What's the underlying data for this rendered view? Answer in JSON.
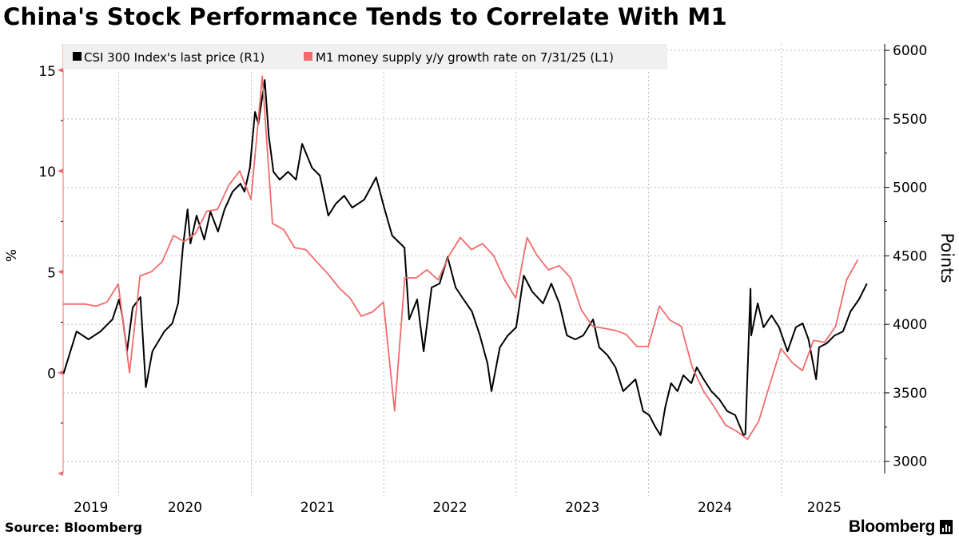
{
  "title": "China's Stock Performance Tends to Correlate With M1",
  "footer": {
    "source": "Source: Bloomberg",
    "logo": "Bloomberg",
    "logo_icon": "bloomberg-terminal-icon"
  },
  "colors": {
    "csi": "#000000",
    "m1": "#f26b6b",
    "legend_bg": "#f0f0f0",
    "grid": "#bbbbbb"
  },
  "chart_data": {
    "type": "line",
    "title": "China's Stock Performance Tends to Correlate With M1",
    "x_range": [
      "2019-08-01",
      "2025-10-13"
    ],
    "x_tick_labels": [
      "2019",
      "2020",
      "2021",
      "2022",
      "2023",
      "2024",
      "2025"
    ],
    "grid": true,
    "legend_placement": "top-left",
    "left_axis": {
      "label": "%",
      "ylim": [
        -5,
        16.3
      ],
      "ticks": [
        15,
        10,
        5,
        0
      ],
      "tick_labels": [
        "15",
        "10",
        "5",
        "0"
      ]
    },
    "right_axis": {
      "label": "Points",
      "ylim": [
        2911,
        6047
      ],
      "ticks": [
        6000,
        5500,
        5000,
        4500,
        4000,
        3500,
        3000
      ],
      "tick_labels": [
        "6000",
        "5500",
        "5000",
        "4500",
        "4000",
        "3500",
        "3000"
      ]
    },
    "series": [
      {
        "name": "CSI 300 Index's last price (R1)",
        "axis": "right",
        "color": "#000000",
        "points": [
          [
            "2019-08-02",
            3640
          ],
          [
            "2019-09-07",
            3948
          ],
          [
            "2019-10-10",
            3890
          ],
          [
            "2019-11-12",
            3948
          ],
          [
            "2019-12-15",
            4036
          ],
          [
            "2020-01-02",
            4182
          ],
          [
            "2020-01-11",
            4065
          ],
          [
            "2020-01-24",
            3803
          ],
          [
            "2020-02-09",
            4123
          ],
          [
            "2020-03-01",
            4199
          ],
          [
            "2020-03-16",
            3541
          ],
          [
            "2020-04-03",
            3803
          ],
          [
            "2020-05-06",
            3948
          ],
          [
            "2020-05-28",
            4007
          ],
          [
            "2020-06-13",
            4153
          ],
          [
            "2020-06-26",
            4560
          ],
          [
            "2020-07-09",
            4840
          ],
          [
            "2020-07-17",
            4590
          ],
          [
            "2020-08-03",
            4794
          ],
          [
            "2020-08-24",
            4619
          ],
          [
            "2020-09-10",
            4823
          ],
          [
            "2020-10-01",
            4677
          ],
          [
            "2020-10-19",
            4840
          ],
          [
            "2020-11-10",
            4968
          ],
          [
            "2020-12-02",
            5027
          ],
          [
            "2020-12-13",
            4968
          ],
          [
            "2020-12-28",
            5143
          ],
          [
            "2021-01-11",
            5551
          ],
          [
            "2021-01-20",
            5464
          ],
          [
            "2021-02-07",
            5784
          ],
          [
            "2021-02-18",
            5376
          ],
          [
            "2021-03-03",
            5114
          ],
          [
            "2021-03-20",
            5056
          ],
          [
            "2021-04-12",
            5114
          ],
          [
            "2021-05-04",
            5056
          ],
          [
            "2021-05-21",
            5318
          ],
          [
            "2021-06-17",
            5143
          ],
          [
            "2021-07-09",
            5085
          ],
          [
            "2021-08-01",
            4794
          ],
          [
            "2021-08-22",
            4881
          ],
          [
            "2021-09-14",
            4939
          ],
          [
            "2021-10-06",
            4852
          ],
          [
            "2021-11-08",
            4910
          ],
          [
            "2021-12-11",
            5073
          ],
          [
            "2022-01-02",
            4852
          ],
          [
            "2022-01-24",
            4648
          ],
          [
            "2022-02-27",
            4560
          ],
          [
            "2022-03-12",
            4036
          ],
          [
            "2022-04-03",
            4182
          ],
          [
            "2022-04-21",
            3803
          ],
          [
            "2022-05-13",
            4269
          ],
          [
            "2022-06-04",
            4298
          ],
          [
            "2022-06-26",
            4491
          ],
          [
            "2022-07-18",
            4269
          ],
          [
            "2022-08-09",
            4182
          ],
          [
            "2022-09-01",
            4094
          ],
          [
            "2022-09-23",
            3919
          ],
          [
            "2022-10-14",
            3715
          ],
          [
            "2022-10-25",
            3512
          ],
          [
            "2022-11-17",
            3832
          ],
          [
            "2022-12-09",
            3919
          ],
          [
            "2023-01-01",
            3978
          ],
          [
            "2023-01-22",
            4356
          ],
          [
            "2023-02-14",
            4240
          ],
          [
            "2023-03-16",
            4153
          ],
          [
            "2023-04-08",
            4298
          ],
          [
            "2023-04-30",
            4153
          ],
          [
            "2023-05-21",
            3919
          ],
          [
            "2023-06-13",
            3890
          ],
          [
            "2023-07-05",
            3919
          ],
          [
            "2023-08-01",
            4036
          ],
          [
            "2023-08-18",
            3832
          ],
          [
            "2023-09-10",
            3774
          ],
          [
            "2023-10-02",
            3686
          ],
          [
            "2023-10-23",
            3512
          ],
          [
            "2023-11-26",
            3599
          ],
          [
            "2023-12-17",
            3366
          ],
          [
            "2024-01-03",
            3337
          ],
          [
            "2024-01-20",
            3249
          ],
          [
            "2024-02-03",
            3191
          ],
          [
            "2024-02-16",
            3395
          ],
          [
            "2024-03-03",
            3570
          ],
          [
            "2024-03-21",
            3512
          ],
          [
            "2024-04-06",
            3628
          ],
          [
            "2024-04-28",
            3570
          ],
          [
            "2024-05-13",
            3686
          ],
          [
            "2024-06-01",
            3599
          ],
          [
            "2024-06-22",
            3512
          ],
          [
            "2024-07-14",
            3453
          ],
          [
            "2024-08-05",
            3366
          ],
          [
            "2024-08-27",
            3337
          ],
          [
            "2024-09-19",
            3191
          ],
          [
            "2024-09-24",
            3200
          ],
          [
            "2024-10-08",
            4260
          ],
          [
            "2024-10-10",
            3919
          ],
          [
            "2024-10-28",
            4153
          ],
          [
            "2024-11-13",
            3978
          ],
          [
            "2024-12-05",
            4065
          ],
          [
            "2024-12-26",
            3978
          ],
          [
            "2025-01-18",
            3803
          ],
          [
            "2025-02-10",
            3978
          ],
          [
            "2025-03-01",
            4007
          ],
          [
            "2025-03-17",
            3890
          ],
          [
            "2025-04-07",
            3599
          ],
          [
            "2025-04-15",
            3832
          ],
          [
            "2025-05-06",
            3861
          ],
          [
            "2025-05-28",
            3919
          ],
          [
            "2025-06-20",
            3948
          ],
          [
            "2025-07-11",
            4094
          ],
          [
            "2025-08-03",
            4182
          ],
          [
            "2025-08-25",
            4298
          ]
        ]
      },
      {
        "name": "M1 money supply y/y growth rate on 7/31/25 (L1)",
        "axis": "left",
        "color": "#f26b6b",
        "points": [
          [
            "2019-07-31",
            3.4
          ],
          [
            "2019-08-31",
            3.4
          ],
          [
            "2019-09-30",
            3.4
          ],
          [
            "2019-10-31",
            3.3
          ],
          [
            "2019-11-30",
            3.5
          ],
          [
            "2019-12-31",
            4.4
          ],
          [
            "2020-01-31",
            0.0
          ],
          [
            "2020-02-29",
            4.8
          ],
          [
            "2020-03-31",
            5.0
          ],
          [
            "2020-04-30",
            5.5
          ],
          [
            "2020-05-31",
            6.8
          ],
          [
            "2020-06-30",
            6.5
          ],
          [
            "2020-07-31",
            6.9
          ],
          [
            "2020-08-31",
            8.0
          ],
          [
            "2020-09-30",
            8.1
          ],
          [
            "2020-10-31",
            9.3
          ],
          [
            "2020-11-30",
            10.0
          ],
          [
            "2020-12-31",
            8.6
          ],
          [
            "2021-01-31",
            14.7
          ],
          [
            "2021-02-28",
            7.4
          ],
          [
            "2021-03-31",
            7.1
          ],
          [
            "2021-04-30",
            6.2
          ],
          [
            "2021-05-31",
            6.1
          ],
          [
            "2021-06-30",
            5.5
          ],
          [
            "2021-07-31",
            4.9
          ],
          [
            "2021-08-31",
            4.2
          ],
          [
            "2021-09-30",
            3.7
          ],
          [
            "2021-10-31",
            2.8
          ],
          [
            "2021-11-30",
            3.0
          ],
          [
            "2021-12-31",
            3.5
          ],
          [
            "2022-01-31",
            -1.9
          ],
          [
            "2022-02-28",
            4.7
          ],
          [
            "2022-03-31",
            4.7
          ],
          [
            "2022-04-30",
            5.1
          ],
          [
            "2022-05-31",
            4.6
          ],
          [
            "2022-06-30",
            5.8
          ],
          [
            "2022-07-31",
            6.7
          ],
          [
            "2022-08-31",
            6.1
          ],
          [
            "2022-09-30",
            6.4
          ],
          [
            "2022-10-31",
            5.8
          ],
          [
            "2022-11-30",
            4.6
          ],
          [
            "2022-12-31",
            3.7
          ],
          [
            "2023-01-31",
            6.7
          ],
          [
            "2023-02-28",
            5.8
          ],
          [
            "2023-03-31",
            5.1
          ],
          [
            "2023-04-30",
            5.3
          ],
          [
            "2023-05-31",
            4.7
          ],
          [
            "2023-06-30",
            3.1
          ],
          [
            "2023-07-31",
            2.3
          ],
          [
            "2023-08-31",
            2.2
          ],
          [
            "2023-09-30",
            2.1
          ],
          [
            "2023-10-31",
            1.9
          ],
          [
            "2023-11-30",
            1.3
          ],
          [
            "2023-12-31",
            1.3
          ],
          [
            "2024-01-31",
            3.3
          ],
          [
            "2024-02-29",
            2.6
          ],
          [
            "2024-03-31",
            2.3
          ],
          [
            "2024-04-30",
            0.3
          ],
          [
            "2024-05-31",
            -0.9
          ],
          [
            "2024-06-30",
            -1.7
          ],
          [
            "2024-07-31",
            -2.6
          ],
          [
            "2024-08-31",
            -2.9
          ],
          [
            "2024-09-30",
            -3.3
          ],
          [
            "2024-10-31",
            -2.4
          ],
          [
            "2024-11-30",
            -0.6
          ],
          [
            "2024-12-31",
            1.2
          ],
          [
            "2025-01-31",
            0.5
          ],
          [
            "2025-02-28",
            0.1
          ],
          [
            "2025-03-31",
            1.6
          ],
          [
            "2025-04-30",
            1.5
          ],
          [
            "2025-05-31",
            2.3
          ],
          [
            "2025-06-30",
            4.6
          ],
          [
            "2025-07-31",
            5.6
          ]
        ]
      }
    ]
  }
}
